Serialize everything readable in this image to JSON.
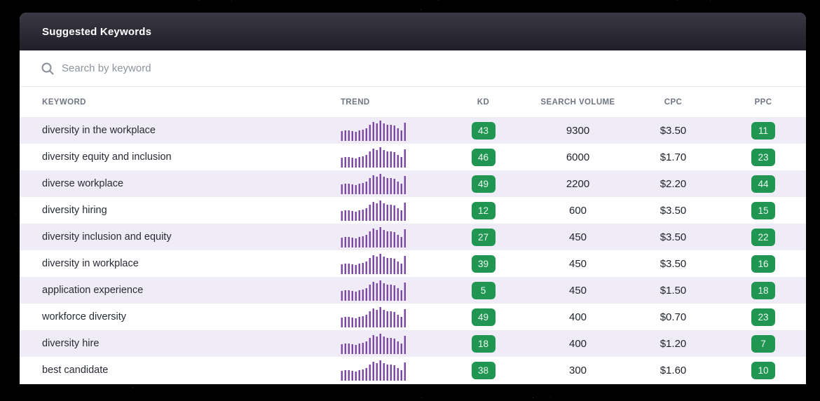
{
  "window": {
    "title": "Suggested Keywords"
  },
  "search": {
    "placeholder": "Search by keyword",
    "value": ""
  },
  "colors": {
    "badge_green": "#219653",
    "trend_purple_dark": "#7d4aa2",
    "trend_purple_light": "#c4a6dd",
    "row_stripe": "#efecf8",
    "titlebar_top": "#3a3844",
    "titlebar_bottom": "#201f28"
  },
  "table": {
    "columns": [
      "KEYWORD",
      "TREND",
      "KD",
      "SEARCH VOLUME",
      "CPC",
      "PPC"
    ],
    "rows": [
      {
        "keyword": "diversity in the workplace",
        "kd": "43",
        "search_volume": "9300",
        "cpc": "$3.50",
        "ppc": "11"
      },
      {
        "keyword": "diversity equity and inclusion",
        "kd": "46",
        "search_volume": "6000",
        "cpc": "$1.70",
        "ppc": "23"
      },
      {
        "keyword": "diverse workplace",
        "kd": "49",
        "search_volume": "2200",
        "cpc": "$2.20",
        "ppc": "44"
      },
      {
        "keyword": "diversity hiring",
        "kd": "12",
        "search_volume": "600",
        "cpc": "$3.50",
        "ppc": "15"
      },
      {
        "keyword": "diversity inclusion and equity",
        "kd": "27",
        "search_volume": "450",
        "cpc": "$3.50",
        "ppc": "22"
      },
      {
        "keyword": "diversity in workplace",
        "kd": "39",
        "search_volume": "450",
        "cpc": "$3.50",
        "ppc": "16"
      },
      {
        "keyword": "application experience",
        "kd": "5",
        "search_volume": "450",
        "cpc": "$1.50",
        "ppc": "18"
      },
      {
        "keyword": "workforce diversity",
        "kd": "49",
        "search_volume": "400",
        "cpc": "$0.70",
        "ppc": "23"
      },
      {
        "keyword": "diversity hire",
        "kd": "18",
        "search_volume": "400",
        "cpc": "$1.20",
        "ppc": "7"
      },
      {
        "keyword": "best candidate",
        "kd": "38",
        "search_volume": "300",
        "cpc": "$1.60",
        "ppc": "10"
      }
    ]
  },
  "chart_data": {
    "type": "bar",
    "title": "Trend sparkline (identical mini bar chart repeated on every row)",
    "values": [
      48,
      50,
      49,
      46,
      42,
      50,
      52,
      60,
      76,
      90,
      82,
      96,
      84,
      78,
      78,
      72,
      60,
      50,
      86
    ],
    "ylim": [
      0,
      100
    ],
    "xlabel": "",
    "ylabel": ""
  }
}
